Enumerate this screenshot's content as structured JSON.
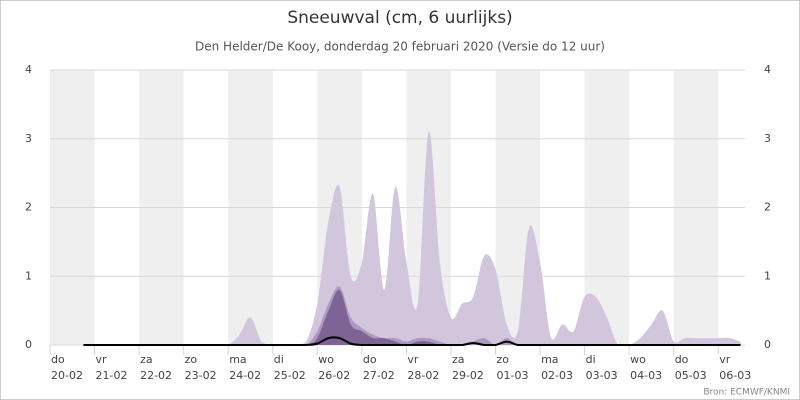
{
  "chart_data": {
    "type": "area",
    "title": "Sneeuwval (cm, 6 uurlijks)",
    "subtitle": "Den Helder/De Kooy, donderdag 20 februari 2020 (Versie do 12 uur)",
    "credit": "Bron: ECMWF/KNMI",
    "x": [
      0,
      0.25,
      0.5,
      0.75,
      1,
      1.25,
      1.5,
      1.75,
      2,
      2.25,
      2.5,
      2.75,
      3,
      3.25,
      3.5,
      3.75,
      4,
      4.25,
      4.5,
      4.75,
      5,
      5.25,
      5.5,
      5.75,
      6,
      6.25,
      6.5,
      6.75,
      7,
      7.25,
      7.5,
      7.75,
      8,
      8.25,
      8.5,
      8.75,
      9,
      9.25,
      9.5,
      9.75,
      10,
      10.25,
      10.5,
      10.75,
      11,
      11.25,
      11.5,
      11.75,
      12,
      12.25,
      12.5,
      12.75,
      13,
      13.25,
      13.5,
      13.75,
      14,
      14.25,
      14.5,
      14.75,
      15,
      15.25,
      15.5
    ],
    "series": [
      {
        "color": "#d2c6dd",
        "values": [
          0,
          0,
          0,
          0,
          0,
          0,
          0,
          0,
          0,
          0,
          0,
          0,
          0,
          0,
          0,
          0,
          0,
          0.15,
          0.4,
          0.05,
          0,
          0,
          0,
          0.05,
          0.6,
          1.8,
          2.3,
          1.0,
          1.2,
          2.2,
          0.8,
          2.3,
          1.2,
          0.6,
          3.1,
          1.2,
          0.4,
          0.6,
          0.7,
          1.3,
          1.1,
          0.3,
          0.2,
          1.7,
          1.2,
          0.1,
          0.3,
          0.2,
          0.7,
          0.7,
          0.4,
          0,
          0,
          0.1,
          0.3,
          0.5,
          0.05,
          0.1,
          0.1,
          0.1,
          0.1,
          0.1,
          0.05
        ]
      },
      {
        "color": "#ac98c0",
        "values": [
          0,
          0,
          0,
          0,
          0,
          0,
          0,
          0,
          0,
          0,
          0,
          0,
          0,
          0,
          0,
          0,
          0,
          0,
          0,
          0,
          0,
          0,
          0,
          0,
          0.2,
          0.6,
          0.85,
          0.4,
          0.25,
          0.15,
          0.1,
          0.1,
          0.05,
          0.1,
          0.1,
          0.05,
          0,
          0,
          0.05,
          0.1,
          0,
          0.1,
          0,
          0,
          0,
          0,
          0,
          0,
          0,
          0,
          0,
          0,
          0,
          0,
          0,
          0,
          0,
          0,
          0,
          0,
          0,
          0,
          0
        ]
      },
      {
        "color": "#7e6395",
        "values": [
          0,
          0,
          0,
          0,
          0,
          0,
          0,
          0,
          0,
          0,
          0,
          0,
          0,
          0,
          0,
          0,
          0,
          0,
          0,
          0,
          0,
          0,
          0,
          0,
          0.1,
          0.5,
          0.8,
          0.3,
          0.2,
          0.1,
          0.1,
          0.05,
          0,
          0.05,
          0.05,
          0,
          0,
          0,
          0,
          0,
          0,
          0,
          0,
          0,
          0,
          0,
          0,
          0,
          0,
          0,
          0,
          0,
          0,
          0,
          0,
          0,
          0,
          0,
          0,
          0,
          0,
          0,
          0
        ]
      },
      {
        "color": "#000000",
        "line": true,
        "values": [
          null,
          null,
          null,
          0,
          0,
          0,
          0,
          0,
          0,
          0,
          0,
          0,
          0,
          0,
          0,
          0,
          0,
          0,
          0,
          0,
          0,
          0,
          0,
          0,
          0.02,
          0.1,
          0.1,
          0.02,
          0,
          0,
          0,
          0,
          0,
          0,
          0,
          0,
          0,
          0,
          0.03,
          0,
          0,
          0.05,
          0,
          0,
          0,
          0,
          0,
          0,
          0,
          0,
          0,
          0,
          0,
          0,
          0,
          0,
          0,
          0,
          0,
          0,
          0,
          0,
          0
        ]
      }
    ],
    "xlim": [
      0,
      15.6
    ],
    "xticks": [
      {
        "value": 0,
        "label": "do"
      },
      {
        "value": 1,
        "label": "vr"
      },
      {
        "value": 2,
        "label": "za"
      },
      {
        "value": 3,
        "label": "zo"
      },
      {
        "value": 4,
        "label": "ma"
      },
      {
        "value": 5,
        "label": "di"
      },
      {
        "value": 6,
        "label": "wo"
      },
      {
        "value": 7,
        "label": "do"
      },
      {
        "value": 8,
        "label": "vr"
      },
      {
        "value": 9,
        "label": "za"
      },
      {
        "value": 10,
        "label": "zo"
      },
      {
        "value": 11,
        "label": "ma"
      },
      {
        "value": 12,
        "label": "di"
      },
      {
        "value": 13,
        "label": "wo"
      },
      {
        "value": 14,
        "label": "do"
      },
      {
        "value": 15,
        "label": "vr"
      }
    ],
    "xtick_dates": [
      "20-02",
      "21-02",
      "22-02",
      "23-02",
      "24-02",
      "25-02",
      "26-02",
      "27-02",
      "28-02",
      "29-02",
      "01-03",
      "02-03",
      "03-03",
      "04-03",
      "05-03",
      "06-03"
    ],
    "ylim": [
      0,
      4
    ],
    "yticks": [
      0,
      1,
      2,
      3,
      4
    ],
    "grid": true
  }
}
